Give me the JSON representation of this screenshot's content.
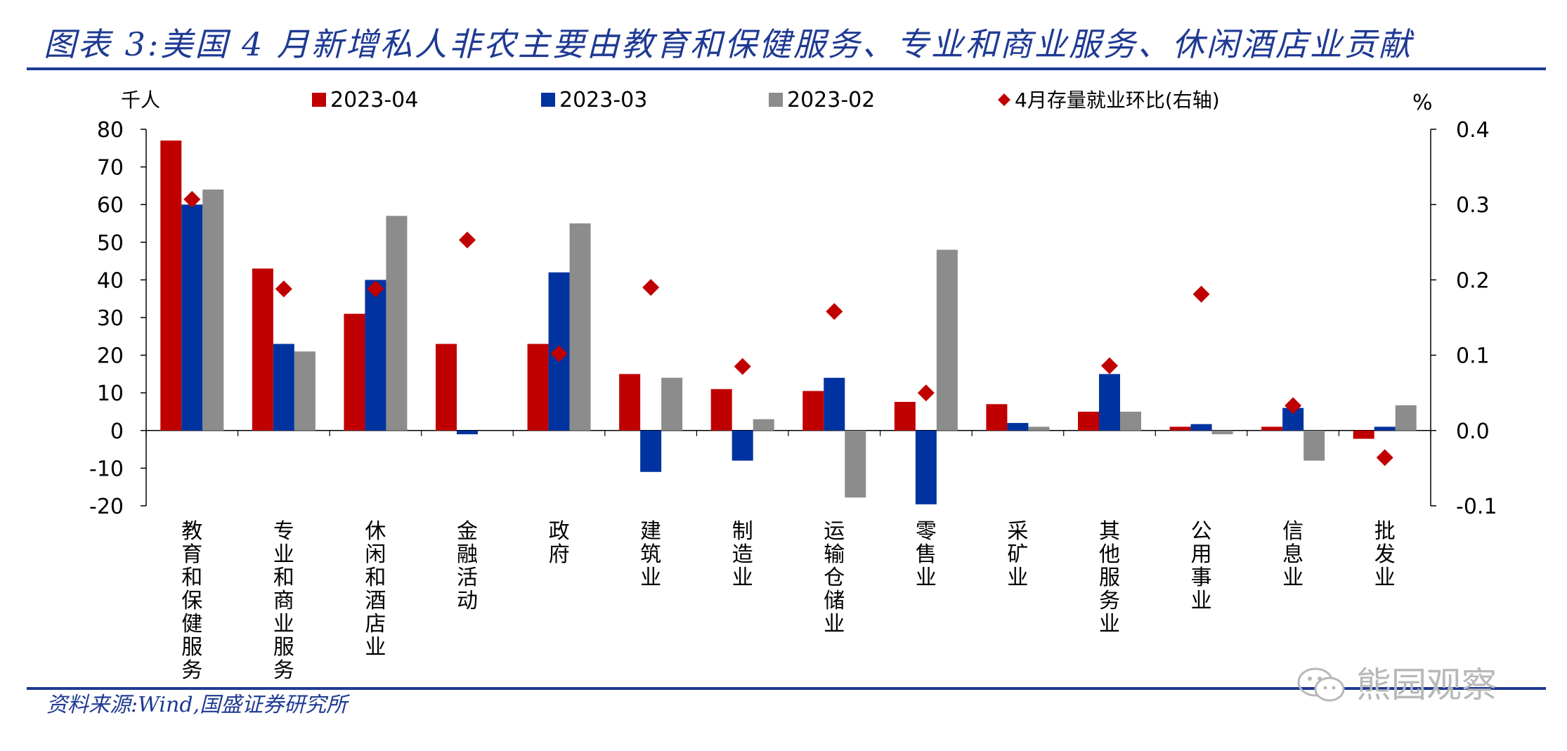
{
  "title": "图表 3:美国 4 月新增私人非农主要由教育和保健服务、专业和商业服务、休闲酒店业贡献",
  "source": "资料来源:Wind,国盛证券研究所",
  "watermark": "熊园观察",
  "chart_data": {
    "type": "bar",
    "categories": [
      "教育和保健服务",
      "专业和商业服务",
      "休闲和酒店业",
      "金融活动",
      "政府",
      "建筑业",
      "制造业",
      "运输仓储业",
      "零售业",
      "采矿业",
      "其他服务业",
      "公用事业",
      "信息业",
      "批发业"
    ],
    "series": [
      {
        "name": "2023-04",
        "type": "bar",
        "axis": "left",
        "color": "#c00000",
        "values": [
          77,
          43,
          31,
          23,
          23,
          15,
          11,
          10.5,
          7.6,
          7,
          5,
          1,
          1,
          -2.2
        ]
      },
      {
        "name": "2023-03",
        "type": "bar",
        "axis": "left",
        "color": "#0033a0",
        "values": [
          60,
          23,
          40,
          -1,
          42,
          -11,
          -8,
          14,
          -19.6,
          2,
          15,
          1.7,
          6,
          1
        ]
      },
      {
        "name": "2023-02",
        "type": "bar",
        "axis": "left",
        "color": "#8c8c8c",
        "values": [
          64,
          21,
          57,
          0,
          55,
          14,
          3,
          -17.8,
          48,
          1,
          5,
          -1,
          -8,
          6.7
        ]
      },
      {
        "name": "4月存量就业环比(右轴)",
        "type": "scatter",
        "axis": "right",
        "color": "#c00000",
        "values": [
          0.307,
          0.188,
          0.188,
          0.253,
          0.102,
          0.19,
          0.085,
          0.158,
          0.05,
          null,
          0.086,
          0.181,
          0.033,
          -0.036
        ]
      }
    ],
    "y_left": {
      "label": "千人",
      "lim": [
        -20,
        80
      ],
      "ticks": [
        -20,
        -10,
        0,
        10,
        20,
        30,
        40,
        50,
        60,
        70,
        80
      ]
    },
    "y_right": {
      "label": "%",
      "lim": [
        -0.1,
        0.4
      ],
      "ticks": [
        "-0.1",
        "0.0",
        "0.1",
        "0.2",
        "0.3",
        "0.4"
      ]
    },
    "legend_position": "top",
    "grid": false
  }
}
